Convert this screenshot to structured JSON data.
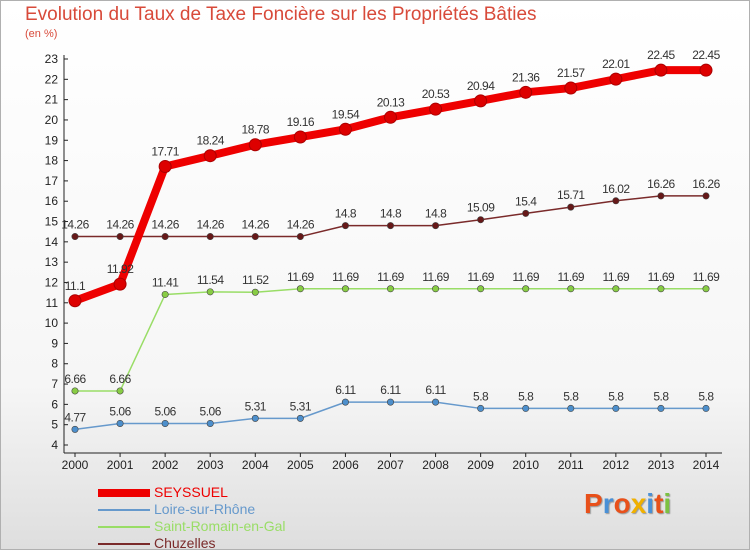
{
  "title": "Evolution du Taux de Taxe Foncière sur les Propriétés Bâties",
  "subtitle": "(en %)",
  "logo": {
    "letters": [
      "P",
      "r",
      "o",
      "x",
      "i",
      "t",
      "i"
    ],
    "colors": [
      "#e8501a",
      "#4a90d6",
      "#e8501a",
      "#f0b000",
      "#4a90d6",
      "#e8501a",
      "#7cc142"
    ]
  },
  "chart_data": {
    "type": "line",
    "title": "Evolution du Taux de Taxe Foncière sur les Propriétés Bâties",
    "ylabel": "(en %)",
    "ylim": [
      4,
      23
    ],
    "yticks": [
      "4",
      "5",
      "6",
      "7",
      "8",
      "9",
      "10",
      "11",
      "12",
      "13",
      "14",
      "15",
      "16",
      "17",
      "18",
      "19",
      "20",
      "21",
      "22",
      "23"
    ],
    "categories": [
      "2000",
      "2001",
      "2002",
      "2003",
      "2004",
      "2005",
      "2006",
      "2007",
      "2008",
      "2009",
      "2010",
      "2011",
      "2012",
      "2013",
      "2014"
    ],
    "series": [
      {
        "name": "SEYSSUEL",
        "color": "#ee0000",
        "point_color": "#dd0000",
        "label_color": "#333333",
        "width": "thick",
        "values": [
          11.1,
          11.92,
          17.71,
          18.24,
          18.78,
          19.16,
          19.54,
          20.13,
          20.53,
          20.94,
          21.36,
          21.57,
          22.01,
          22.45,
          22.45
        ],
        "labels": [
          "11.1",
          "11.92",
          "17.71",
          "18.24",
          "18.78",
          "19.16",
          "19.54",
          "20.13",
          "20.53",
          "20.94",
          "21.36",
          "21.57",
          "22.01",
          "22.45",
          "22.45"
        ]
      },
      {
        "name": "Loire-sur-Rhône",
        "color": "#6699cc",
        "point_color": "#4d8fcc",
        "label_color": "#333333",
        "width": "thin",
        "values": [
          4.77,
          5.06,
          5.06,
          5.06,
          5.31,
          5.31,
          6.11,
          6.11,
          6.11,
          5.8,
          5.8,
          5.8,
          5.8,
          5.8,
          5.8
        ],
        "labels": [
          "4.77",
          "5.06",
          "5.06",
          "5.06",
          "5.31",
          "5.31",
          "6.11",
          "6.11",
          "6.11",
          "5.8",
          "5.8",
          "5.8",
          "5.8",
          "5.8",
          "5.8"
        ]
      },
      {
        "name": "Saint-Romain-en-Gal",
        "color": "#99dd66",
        "point_color": "#88cc44",
        "label_color": "#333333",
        "width": "thin",
        "values": [
          6.66,
          6.66,
          11.41,
          11.54,
          11.52,
          11.69,
          11.69,
          11.69,
          11.69,
          11.69,
          11.69,
          11.69,
          11.69,
          11.69,
          11.69
        ],
        "labels": [
          "6.66",
          "6.66",
          "11.41",
          "11.54",
          "11.52",
          "11.69",
          "11.69",
          "11.69",
          "11.69",
          "11.69",
          "11.69",
          "11.69",
          "11.69",
          "11.69",
          "11.69"
        ]
      },
      {
        "name": "Chuzelles",
        "color": "#7a2a2a",
        "point_color": "#661818",
        "label_color": "#333333",
        "width": "thin",
        "values": [
          14.26,
          14.26,
          14.26,
          14.26,
          14.26,
          14.26,
          14.8,
          14.8,
          14.8,
          15.09,
          15.4,
          15.71,
          16.02,
          16.26,
          16.26
        ],
        "labels": [
          "14.26",
          "14.26",
          "14.26",
          "14.26",
          "14.26",
          "14.26",
          "14.8",
          "14.8",
          "14.8",
          "15.09",
          "15.4",
          "15.71",
          "16.02",
          "16.26",
          "16.26"
        ]
      }
    ],
    "grid": false,
    "legend": "bottom-left"
  }
}
